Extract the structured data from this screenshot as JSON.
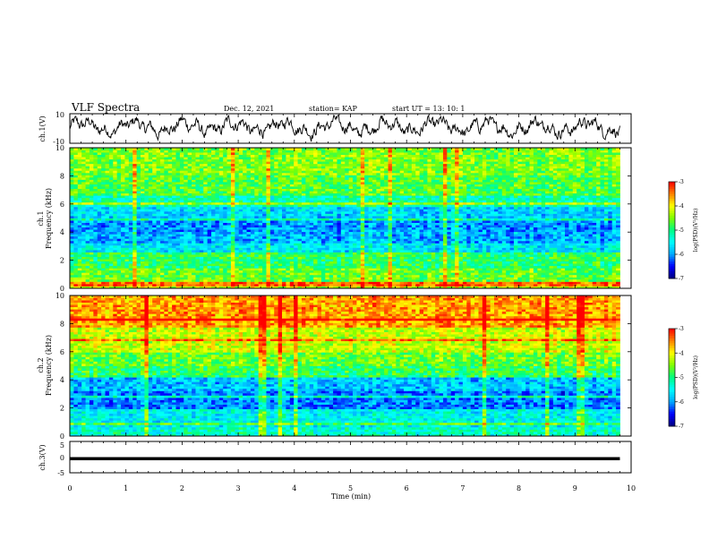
{
  "header": {
    "title": "VLF Spectra",
    "date": "Dec. 12, 2021",
    "station": "station= KAP",
    "start": "start UT = 13: 10: 1"
  },
  "colors": {
    "colormap": [
      "#000080",
      "#0000ff",
      "#00aaff",
      "#00ffff",
      "#00ff80",
      "#80ff00",
      "#ffff00",
      "#ff8000",
      "#ff0000",
      "#ffffff"
    ],
    "trace": "#000000",
    "ch3_bar": "#000000"
  },
  "chart_data": [
    {
      "type": "line",
      "panel": "ch1-waveform",
      "ylabel": "ch.1(V)",
      "ylim": [
        -10,
        10
      ],
      "yticks": [
        "10",
        "-10"
      ],
      "xlim": [
        0,
        10
      ],
      "description_values": "noisy waveform oscillating roughly between -10 and 8 V"
    },
    {
      "type": "heatmap",
      "panel": "ch1-spectrogram",
      "ylabel": "ch.1\nFrequency (kHz)",
      "ylabel_lines": [
        "ch.1",
        "Frequency (kHz)"
      ],
      "ylim": [
        0,
        10
      ],
      "yticks": [
        "0",
        "2",
        "4",
        "6",
        "8",
        "10"
      ],
      "xlim": [
        0,
        10
      ],
      "colorbar": {
        "label": "log(PSD)(V²/Hz)",
        "range": [
          -7,
          -3
        ],
        "ticks": [
          "-3",
          "-4",
          "-5",
          "-6",
          "-7"
        ]
      },
      "bands_khz_log_psd": [
        {
          "f": [
            0.0,
            0.5
          ],
          "v": -4.2
        },
        {
          "f": [
            0.5,
            1.5
          ],
          "v": -4.6
        },
        {
          "f": [
            1.5,
            2.6
          ],
          "v": -4.9
        },
        {
          "f": [
            2.6,
            3.2
          ],
          "v": -5.6
        },
        {
          "f": [
            3.2,
            4.0
          ],
          "v": -5.9
        },
        {
          "f": [
            4.0,
            5.0
          ],
          "v": -6.0
        },
        {
          "f": [
            5.0,
            5.8
          ],
          "v": -5.7
        },
        {
          "f": [
            5.8,
            6.6
          ],
          "v": -5.2
        },
        {
          "f": [
            6.6,
            8.0
          ],
          "v": -4.7
        },
        {
          "f": [
            8.0,
            10.0
          ],
          "v": -4.5
        }
      ]
    },
    {
      "type": "heatmap",
      "panel": "ch2-spectrogram",
      "ylabel": "ch.2\nFrequency (kHz)",
      "ylabel_lines": [
        "ch.2",
        "Frequency (kHz)"
      ],
      "ylim": [
        0,
        10
      ],
      "yticks": [
        "0",
        "2",
        "4",
        "6",
        "8",
        "10"
      ],
      "xlim": [
        0,
        10
      ],
      "colorbar": {
        "label": "log(PSD)(V²/Hz)",
        "range": [
          -7,
          -3
        ],
        "ticks": [
          "-3",
          "-4",
          "-5",
          "-6",
          "-7"
        ]
      },
      "bands_khz_log_psd": [
        {
          "f": [
            0.0,
            0.6
          ],
          "v": -5.3
        },
        {
          "f": [
            0.6,
            2.0
          ],
          "v": -5.5
        },
        {
          "f": [
            2.0,
            3.2
          ],
          "v": -6.1
        },
        {
          "f": [
            3.2,
            4.2
          ],
          "v": -5.8
        },
        {
          "f": [
            4.2,
            5.0
          ],
          "v": -4.9
        },
        {
          "f": [
            5.0,
            6.0
          ],
          "v": -4.6
        },
        {
          "f": [
            6.0,
            7.8
          ],
          "v": -4.2
        },
        {
          "f": [
            7.8,
            10.0
          ],
          "v": -3.6
        }
      ]
    },
    {
      "type": "line",
      "panel": "ch3-waveform",
      "ylabel": "ch.3(V)",
      "ylim": [
        -5,
        5
      ],
      "yticks": [
        "5",
        "0",
        "-5"
      ],
      "xlim": [
        0,
        10
      ],
      "xticks": [
        "0",
        "1",
        "2",
        "3",
        "4",
        "5",
        "6",
        "7",
        "8",
        "9",
        "10"
      ],
      "xlabel": "Time (min)",
      "values_note": "flat level near -0.5 V across the whole interval (0 to 9.8 min)"
    }
  ]
}
